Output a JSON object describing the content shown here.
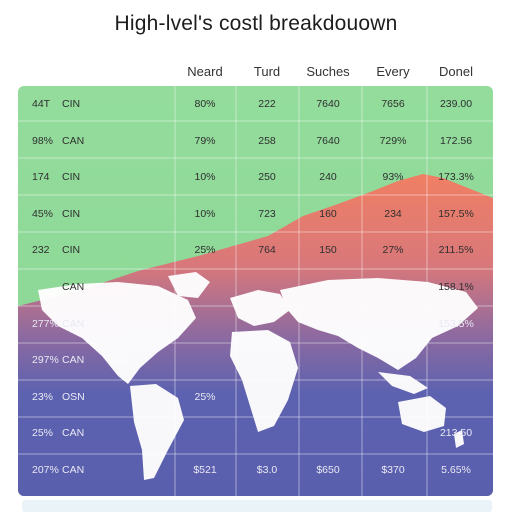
{
  "chart_data": {
    "type": "table",
    "title": "High-lvel's costl breakdouown",
    "columns": [
      "Neard",
      "Turd",
      "Suches",
      "Every",
      "Donel"
    ],
    "rows": [
      {
        "a": "44T",
        "b": "CIN",
        "cells": [
          "80%",
          "222",
          "7640",
          "7656",
          "239.00"
        ]
      },
      {
        "a": "98%",
        "b": "CAN",
        "cells": [
          "79%",
          "258",
          "7640",
          "729%",
          "172.56"
        ]
      },
      {
        "a": "174",
        "b": "CIN",
        "cells": [
          "10%",
          "250",
          "240",
          "93%",
          "173.3%"
        ]
      },
      {
        "a": "45%",
        "b": "CIN",
        "cells": [
          "10%",
          "723",
          "160",
          "234",
          "157.5%"
        ]
      },
      {
        "a": "232",
        "b": "CIN",
        "cells": [
          "25%",
          "764",
          "150",
          "27%",
          "211.5%"
        ]
      },
      {
        "a": "",
        "b": "CAN",
        "cells": [
          "",
          "",
          "",
          "",
          "158.1%"
        ]
      },
      {
        "a": "277%",
        "b": "CAN",
        "cells": [
          "",
          "",
          "",
          "",
          "153.5%"
        ]
      },
      {
        "a": "297%",
        "b": "CAN",
        "cells": [
          "",
          "",
          "",
          "",
          ""
        ]
      },
      {
        "a": "23%",
        "b": "OSN",
        "cells": [
          "25%",
          "",
          "",
          "",
          ""
        ]
      },
      {
        "a": "25%",
        "b": "CAN",
        "cells": [
          "",
          "",
          "",
          "",
          "213.50"
        ]
      },
      {
        "a": "207%",
        "b": "CAN",
        "cells": [
          "$521",
          "$3.0",
          "$650",
          "$370",
          "5.65%"
        ]
      }
    ]
  },
  "colors": {
    "green_band": "#8fd89a",
    "green_dark_line": "#7ccb88",
    "orange_band": "#f0866a",
    "blue_band": "#5b5fae",
    "continent": "#ffffff"
  }
}
